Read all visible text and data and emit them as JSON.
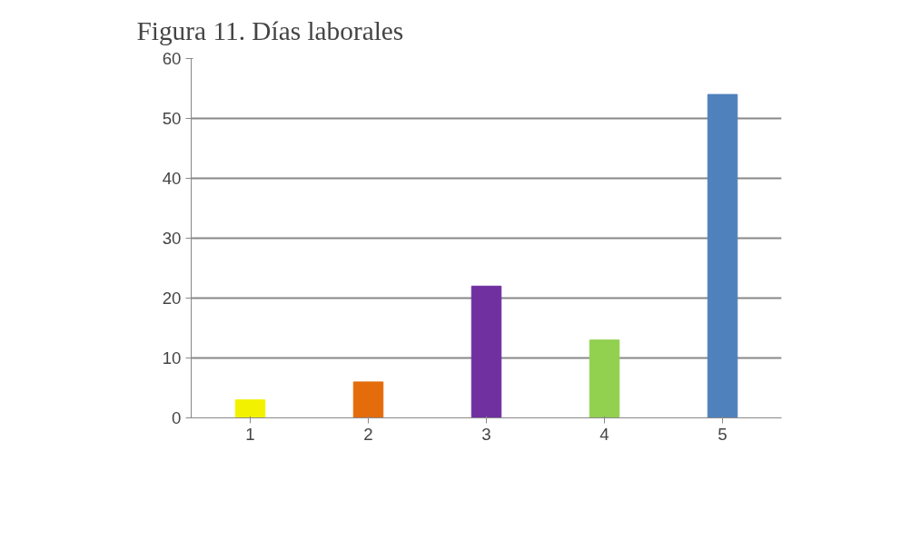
{
  "chart_data": {
    "type": "bar",
    "title": "Figura 11. Días laborales",
    "categories": [
      "1",
      "2",
      "3",
      "4",
      "5"
    ],
    "values": [
      3,
      6,
      22,
      13,
      54
    ],
    "colors": [
      "#f2f200",
      "#e46c0a",
      "#7030a0",
      "#92d050",
      "#4f81bd"
    ],
    "ylim": [
      0,
      60
    ],
    "yticks": [
      0,
      10,
      20,
      30,
      40,
      50,
      60
    ],
    "grid": "y"
  }
}
